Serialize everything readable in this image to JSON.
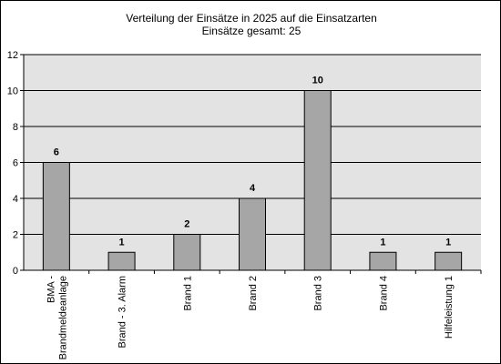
{
  "chart_data": {
    "type": "bar",
    "title": "Verteilung der Einsätze in 2025 auf die Einsatzarten",
    "subtitle": "Einsätze gesamt: 25",
    "categories": [
      "BMA - Brandmeldeanlage",
      "Brand - 3. Alarm",
      "Brand 1",
      "Brand 2",
      "Brand 3",
      "Brand 4",
      "Hilfeleistung 1"
    ],
    "category_lines": [
      [
        "BMA -",
        "Brandmeldeanlage"
      ],
      [
        "Brand - 3. Alarm"
      ],
      [
        "Brand 1"
      ],
      [
        "Brand 2"
      ],
      [
        "Brand 3"
      ],
      [
        "Brand 4"
      ],
      [
        "Hilfeleistung 1"
      ]
    ],
    "values": [
      6,
      1,
      2,
      4,
      10,
      1,
      1
    ],
    "ylim": [
      0,
      12
    ],
    "yticks": [
      "0",
      "2",
      "4",
      "6",
      "8",
      "10",
      "12"
    ],
    "grid": true,
    "xlabel": "",
    "ylabel": "",
    "colors": {
      "bar": "#a6a6a6",
      "plot_background": "#e3e3e3",
      "gridline": "#000000"
    }
  }
}
